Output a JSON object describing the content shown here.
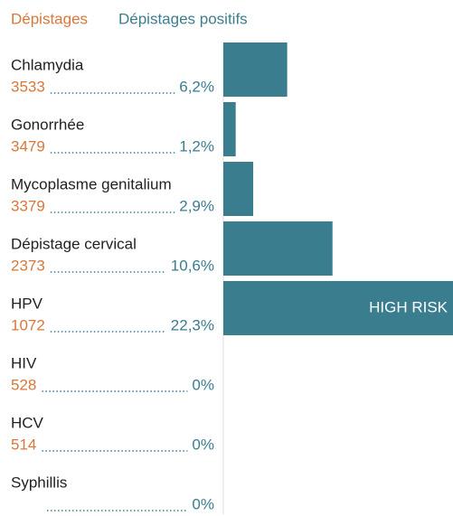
{
  "chart_data": {
    "type": "bar",
    "orientation": "horizontal",
    "headers": [
      "Dépistages",
      "Dépistages positifs"
    ],
    "categories": [
      "Chlamydia",
      "Gonorrhée",
      "Mycoplasme genitalium",
      "Dépistage cervical",
      "HPV",
      "HIV",
      "HCV",
      "Syphillis"
    ],
    "counts": [
      3533,
      3479,
      3379,
      2373,
      1072,
      528,
      514,
      null
    ],
    "values": [
      6.2,
      1.2,
      2.9,
      10.6,
      22.3,
      0,
      0,
      0
    ],
    "value_labels": [
      "6,2%",
      "1,2%",
      "2,9%",
      "10,6%",
      "22,3%",
      "0%",
      "0%",
      "0%"
    ],
    "color": "#3a7d8f",
    "count_color": "#d9773a",
    "annotations": [
      {
        "category": 4,
        "text": "HIGH RISK"
      }
    ]
  }
}
